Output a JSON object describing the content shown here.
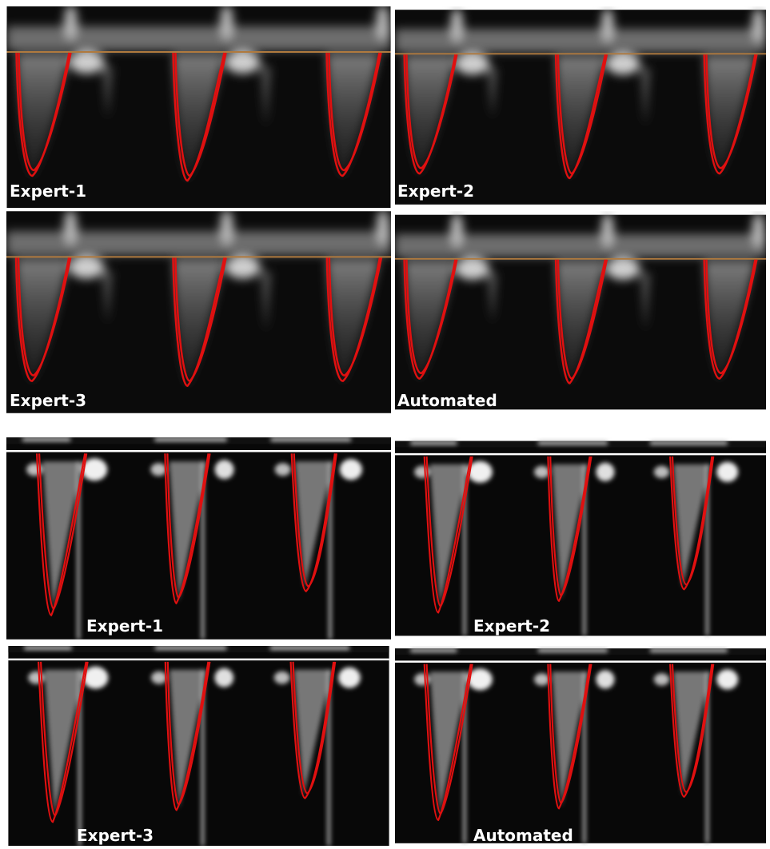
{
  "panels": [
    {
      "label": "Expert-1"
    },
    {
      "label": "Expert-2"
    },
    {
      "label": "Expert-3"
    },
    {
      "label": "Automated"
    },
    {
      "label": "Expert-1"
    },
    {
      "label": "Expert-2"
    },
    {
      "label": "Expert-3"
    },
    {
      "label": "Automated"
    }
  ]
}
